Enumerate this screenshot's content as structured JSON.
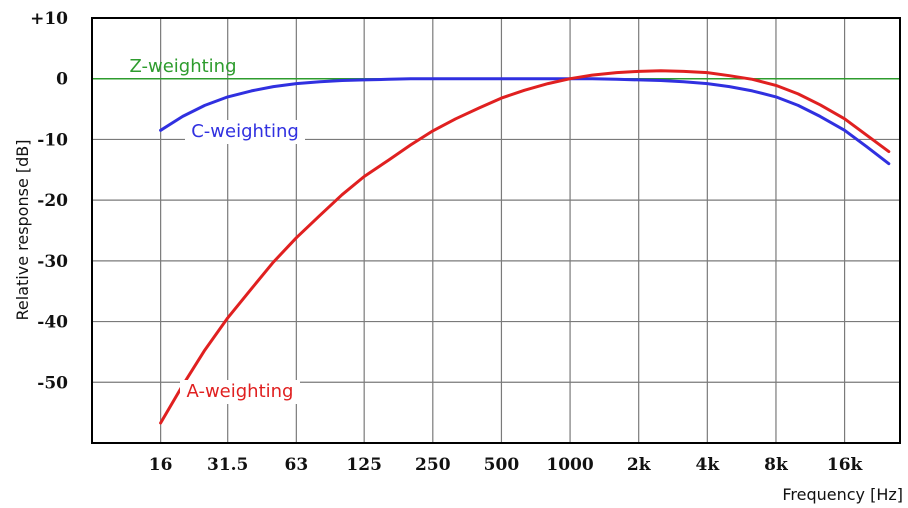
{
  "chart_data": {
    "type": "line",
    "xlabel": "Frequency [Hz]",
    "ylabel": "Relative response [dB]",
    "x_scale": "log2",
    "x_tick_labels": [
      "16",
      "31.5",
      "63",
      "125",
      "250",
      "500",
      "1000",
      "2k",
      "4k",
      "8k",
      "16k"
    ],
    "x_tick_values": [
      16,
      31.5,
      63,
      125,
      250,
      500,
      1000,
      2000,
      4000,
      8000,
      16000
    ],
    "y_tick_labels": [
      "+10",
      "0",
      "-10",
      "-20",
      "-30",
      "-40",
      "-50"
    ],
    "y_tick_values": [
      10,
      0,
      -10,
      -20,
      -30,
      -40,
      -50
    ],
    "xlim": [
      8,
      28000
    ],
    "ylim": [
      -60,
      10
    ],
    "grid": true,
    "x": [
      16,
      20,
      25,
      31.5,
      40,
      50,
      63,
      80,
      100,
      125,
      160,
      200,
      250,
      315,
      400,
      500,
      630,
      800,
      1000,
      1250,
      1600,
      2000,
      2500,
      3150,
      4000,
      5000,
      6300,
      8000,
      10000,
      12500,
      16000,
      20000,
      25000
    ],
    "series": [
      {
        "name": "Z-weighting",
        "color": "#2e9c2e",
        "values": [
          0,
          0,
          0,
          0,
          0,
          0,
          0,
          0,
          0,
          0,
          0,
          0,
          0,
          0,
          0,
          0,
          0,
          0,
          0,
          0,
          0,
          0,
          0,
          0,
          0,
          0,
          0,
          0,
          0,
          0,
          0,
          0,
          0
        ]
      },
      {
        "name": "C-weighting",
        "color": "#3030e0",
        "values": [
          -8.5,
          -6.2,
          -4.4,
          -3.0,
          -2.0,
          -1.3,
          -0.8,
          -0.5,
          -0.3,
          -0.2,
          -0.1,
          0,
          0,
          0,
          0,
          0,
          0,
          0,
          0,
          0,
          -0.1,
          -0.2,
          -0.3,
          -0.5,
          -0.8,
          -1.3,
          -2.0,
          -3.0,
          -4.4,
          -6.2,
          -8.5,
          -11.2,
          -14.0
        ]
      },
      {
        "name": "A-weighting",
        "color": "#e02020",
        "values": [
          -56.7,
          -50.5,
          -44.7,
          -39.4,
          -34.6,
          -30.2,
          -26.2,
          -22.5,
          -19.1,
          -16.1,
          -13.4,
          -10.9,
          -8.6,
          -6.6,
          -4.8,
          -3.2,
          -1.9,
          -0.8,
          0,
          0.6,
          1.0,
          1.2,
          1.3,
          1.2,
          1.0,
          0.5,
          -0.1,
          -1.1,
          -2.5,
          -4.3,
          -6.6,
          -9.3,
          -12.0
        ]
      }
    ]
  }
}
